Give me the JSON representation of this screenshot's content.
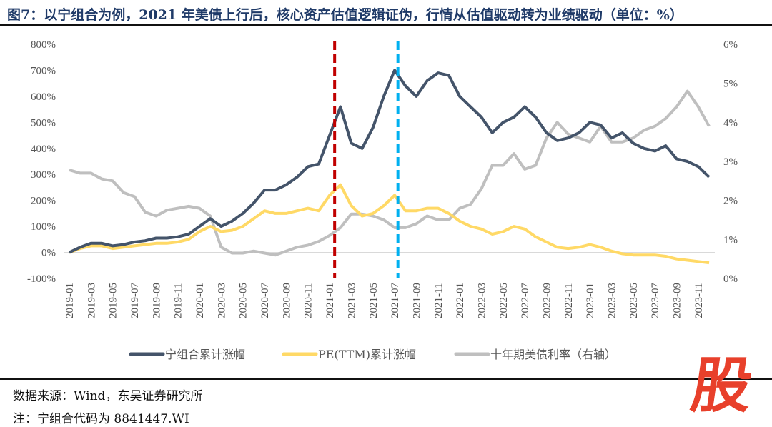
{
  "title": "图7：以宁组合为例，2021 年美债上行后，核心资产估值逻辑证伪，行情从估值驱动转为业绩驱动（单位：%）",
  "source": "数据来源：Wind，东吴证券研究所",
  "note": "注：宁组合代码为 8841447.WI",
  "watermark": "股",
  "chart_data": {
    "type": "line",
    "x": [
      "2019-01",
      "2019-02",
      "2019-03",
      "2019-04",
      "2019-05",
      "2019-06",
      "2019-07",
      "2019-08",
      "2019-09",
      "2019-10",
      "2019-11",
      "2019-12",
      "2020-01",
      "2020-02",
      "2020-03",
      "2020-04",
      "2020-05",
      "2020-06",
      "2020-07",
      "2020-08",
      "2020-09",
      "2020-10",
      "2020-11",
      "2020-12",
      "2021-01",
      "2021-02",
      "2021-03",
      "2021-04",
      "2021-05",
      "2021-06",
      "2021-07",
      "2021-08",
      "2021-09",
      "2021-10",
      "2021-11",
      "2021-12",
      "2022-01",
      "2022-02",
      "2022-03",
      "2022-04",
      "2022-05",
      "2022-06",
      "2022-07",
      "2022-08",
      "2022-09",
      "2022-10",
      "2022-11",
      "2022-12",
      "2023-01",
      "2023-02",
      "2023-03",
      "2023-04",
      "2023-05",
      "2023-06",
      "2023-07",
      "2023-08",
      "2023-09",
      "2023-10",
      "2023-11",
      "2023-12"
    ],
    "x_ticks": [
      "2019-01",
      "2019-03",
      "2019-05",
      "2019-07",
      "2019-09",
      "2019-11",
      "2020-01",
      "2020-03",
      "2020-05",
      "2020-07",
      "2020-09",
      "2020-11",
      "2021-01",
      "2021-03",
      "2021-05",
      "2021-07",
      "2021-09",
      "2021-11",
      "2022-01",
      "2022-03",
      "2022-05",
      "2022-07",
      "2022-09",
      "2022-11",
      "2023-01",
      "2023-03",
      "2023-05",
      "2023-07",
      "2023-09",
      "2023-11"
    ],
    "y_left": {
      "ylim": [
        -100,
        800
      ],
      "ticks": [
        "-100%",
        "0%",
        "100%",
        "200%",
        "300%",
        "400%",
        "500%",
        "600%",
        "700%",
        "800%"
      ]
    },
    "y_right": {
      "ylim": [
        0,
        6
      ],
      "ticks": [
        "0%",
        "1%",
        "2%",
        "3%",
        "4%",
        "5%",
        "6%"
      ]
    },
    "series": [
      {
        "name": "宁组合累计涨幅",
        "axis": "left",
        "color": "#44546a",
        "values": [
          0,
          20,
          35,
          35,
          25,
          30,
          40,
          45,
          55,
          55,
          60,
          70,
          100,
          130,
          100,
          120,
          150,
          190,
          240,
          240,
          260,
          290,
          330,
          340,
          450,
          560,
          420,
          400,
          480,
          600,
          700,
          640,
          600,
          660,
          690,
          680,
          600,
          560,
          520,
          460,
          500,
          520,
          560,
          520,
          460,
          430,
          440,
          460,
          500,
          490,
          440,
          460,
          420,
          400,
          390,
          410,
          360,
          350,
          330,
          290
        ]
      },
      {
        "name": "PE(TTM)累计涨幅",
        "axis": "left",
        "color": "#ffd966",
        "values": [
          0,
          15,
          25,
          25,
          15,
          20,
          25,
          30,
          35,
          35,
          40,
          50,
          80,
          100,
          80,
          85,
          100,
          130,
          160,
          150,
          150,
          160,
          170,
          160,
          220,
          260,
          180,
          140,
          150,
          180,
          220,
          160,
          160,
          170,
          170,
          150,
          120,
          100,
          90,
          70,
          80,
          100,
          90,
          60,
          40,
          20,
          15,
          20,
          30,
          20,
          5,
          -5,
          -10,
          -10,
          -10,
          -15,
          -25,
          -30,
          -35,
          -40
        ]
      },
      {
        "name": "十年期美债利率（右轴）",
        "axis": "right",
        "color": "#bfbfbf",
        "values": [
          2.78,
          2.7,
          2.7,
          2.55,
          2.5,
          2.2,
          2.1,
          1.7,
          1.6,
          1.75,
          1.8,
          1.85,
          1.8,
          1.6,
          0.8,
          0.65,
          0.65,
          0.7,
          0.65,
          0.6,
          0.7,
          0.8,
          0.85,
          0.95,
          1.1,
          1.3,
          1.65,
          1.65,
          1.6,
          1.5,
          1.3,
          1.3,
          1.4,
          1.6,
          1.5,
          1.5,
          1.8,
          1.9,
          2.3,
          2.9,
          2.9,
          3.2,
          2.8,
          2.9,
          3.6,
          4.0,
          3.7,
          3.6,
          3.5,
          3.9,
          3.5,
          3.5,
          3.6,
          3.8,
          3.9,
          4.1,
          4.4,
          4.8,
          4.4,
          3.9
        ]
      }
    ],
    "vlines": [
      {
        "x": "2021-01-15",
        "color": "#c00000"
      },
      {
        "x": "2021-07-10",
        "color": "#00b0f0"
      }
    ],
    "legend": "bottom",
    "grid": false
  }
}
